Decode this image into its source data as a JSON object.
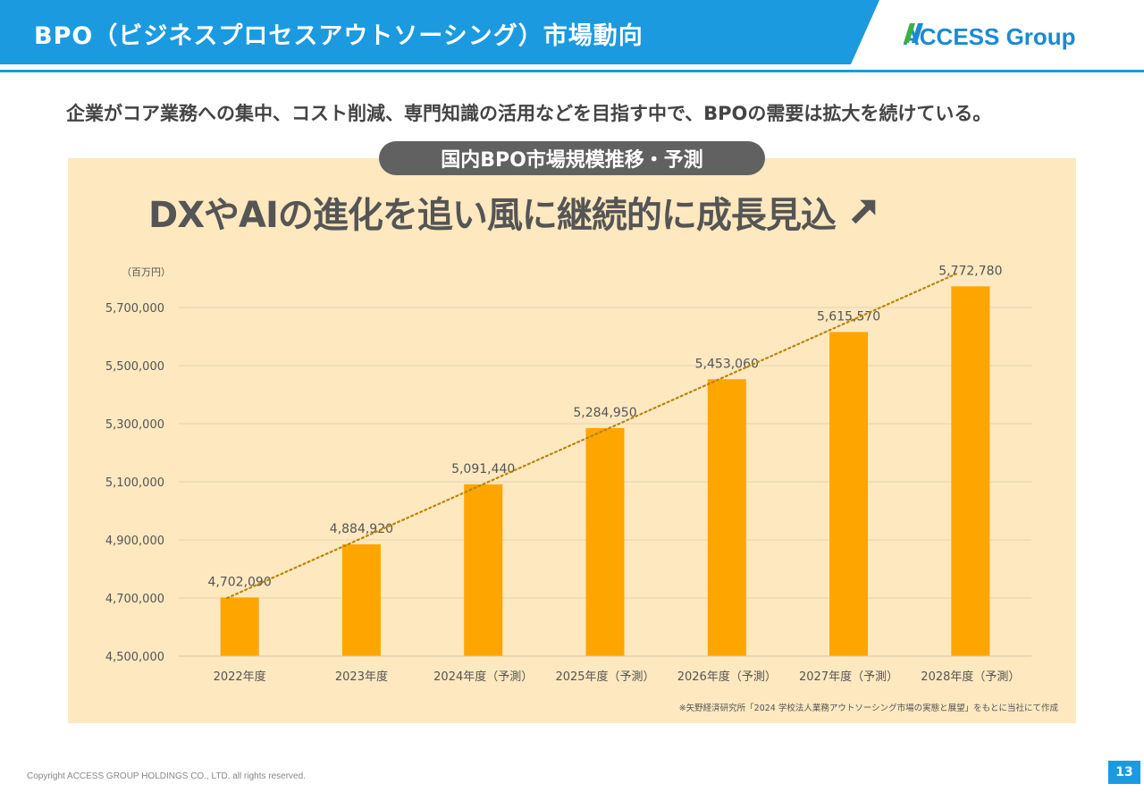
{
  "header": {
    "title": "BPO（ビジネスプロセスアウトソーシング）市場動向",
    "logo_text": "ACCESS Group",
    "brand_color": "#1b9ae0"
  },
  "lead_text": "企業がコア業務への集中、コスト削減、専門知識の活用などを目指す中で、BPOの需要は拡大を続けている。",
  "panel": {
    "pill_label": "国内BPO市場規模推移・予測",
    "headline": "DXやAIの進化を追い風に継続的に成長見込",
    "headline_icon": "arrow-up-right-icon",
    "background_color": "#fde8c0"
  },
  "chart_data": {
    "type": "bar",
    "unit_label": "（百万円）",
    "categories": [
      "2022年度",
      "2023年度",
      "2024年度（予測）",
      "2025年度（予測）",
      "2026年度（予測）",
      "2027年度（予測）",
      "2028年度（予測）"
    ],
    "values": [
      4702090,
      4884920,
      5091440,
      5284950,
      5453060,
      5615570,
      5772780
    ],
    "value_labels": [
      "4,702,090",
      "4,884,920",
      "5,091,440",
      "5,284,950",
      "5,453,060",
      "5,615,570",
      "5,772,780"
    ],
    "ylim": [
      4500000,
      5700000
    ],
    "yticks": [
      4500000,
      4700000,
      4900000,
      5100000,
      5300000,
      5500000,
      5700000
    ],
    "ytick_labels": [
      "4,500,000",
      "4,700,000",
      "4,900,000",
      "5,100,000",
      "5,300,000",
      "5,500,000",
      "5,700,000"
    ],
    "bar_color": "#ffa500",
    "trendline": true,
    "trendline_color": "#b8860b",
    "grid": true
  },
  "source_note": "※矢野経済研究所「2024 学校法人業務アウトソーシング市場の実態と展望」をもとに当社にて作成",
  "footer": {
    "copyright": "Copyright ACCESS GROUP HOLDINGS CO., LTD. all rights reserved.",
    "page_number": "13"
  }
}
